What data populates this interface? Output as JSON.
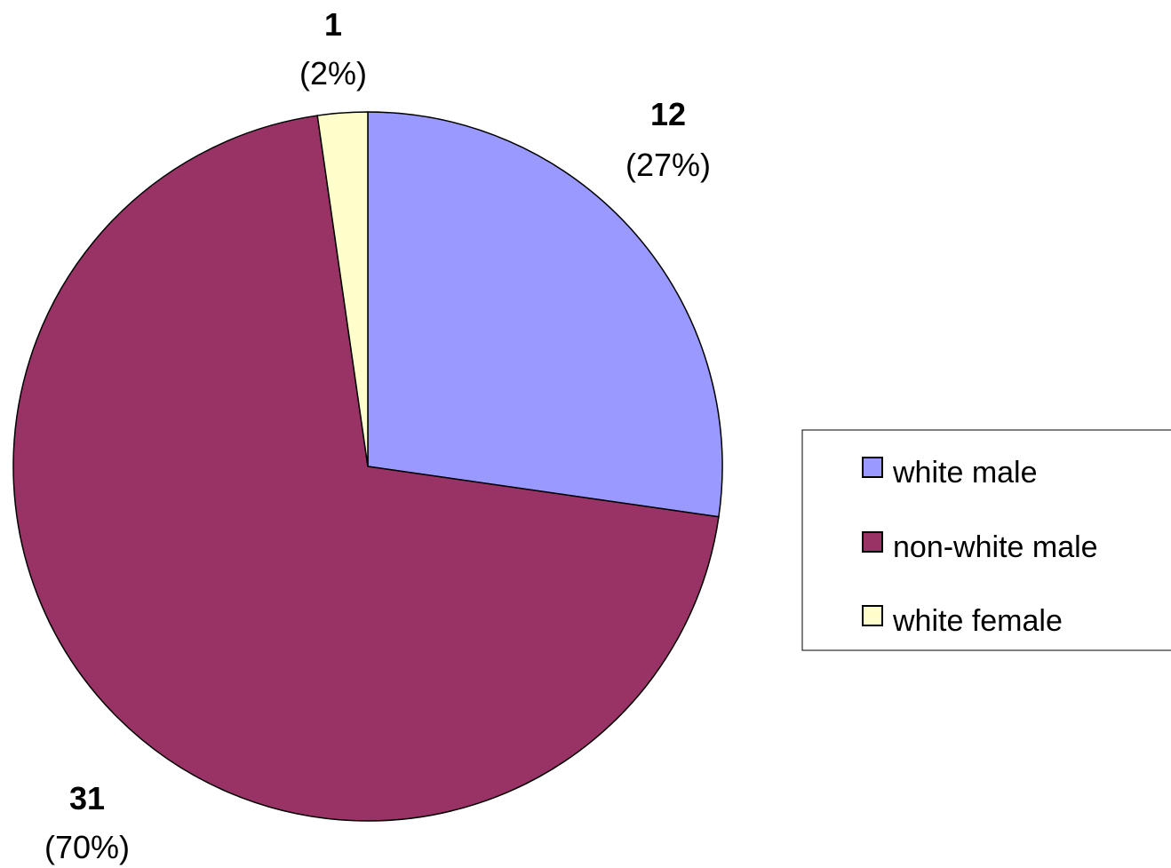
{
  "chart_data": {
    "type": "pie",
    "title": "",
    "categories": [
      "white male",
      "non-white male",
      "white female"
    ],
    "values": [
      12,
      31,
      1
    ],
    "percent_labels": [
      "(27%)",
      "(70%)",
      "(2%)"
    ],
    "value_labels": [
      "12",
      "31",
      "1"
    ],
    "colors": [
      "#9999ff",
      "#993366",
      "#ffffcc"
    ],
    "start_angle_deg": 0,
    "direction": "clockwise",
    "legend": {
      "placement": "right",
      "entries": [
        "white male",
        "non-white male",
        "white female"
      ]
    }
  }
}
